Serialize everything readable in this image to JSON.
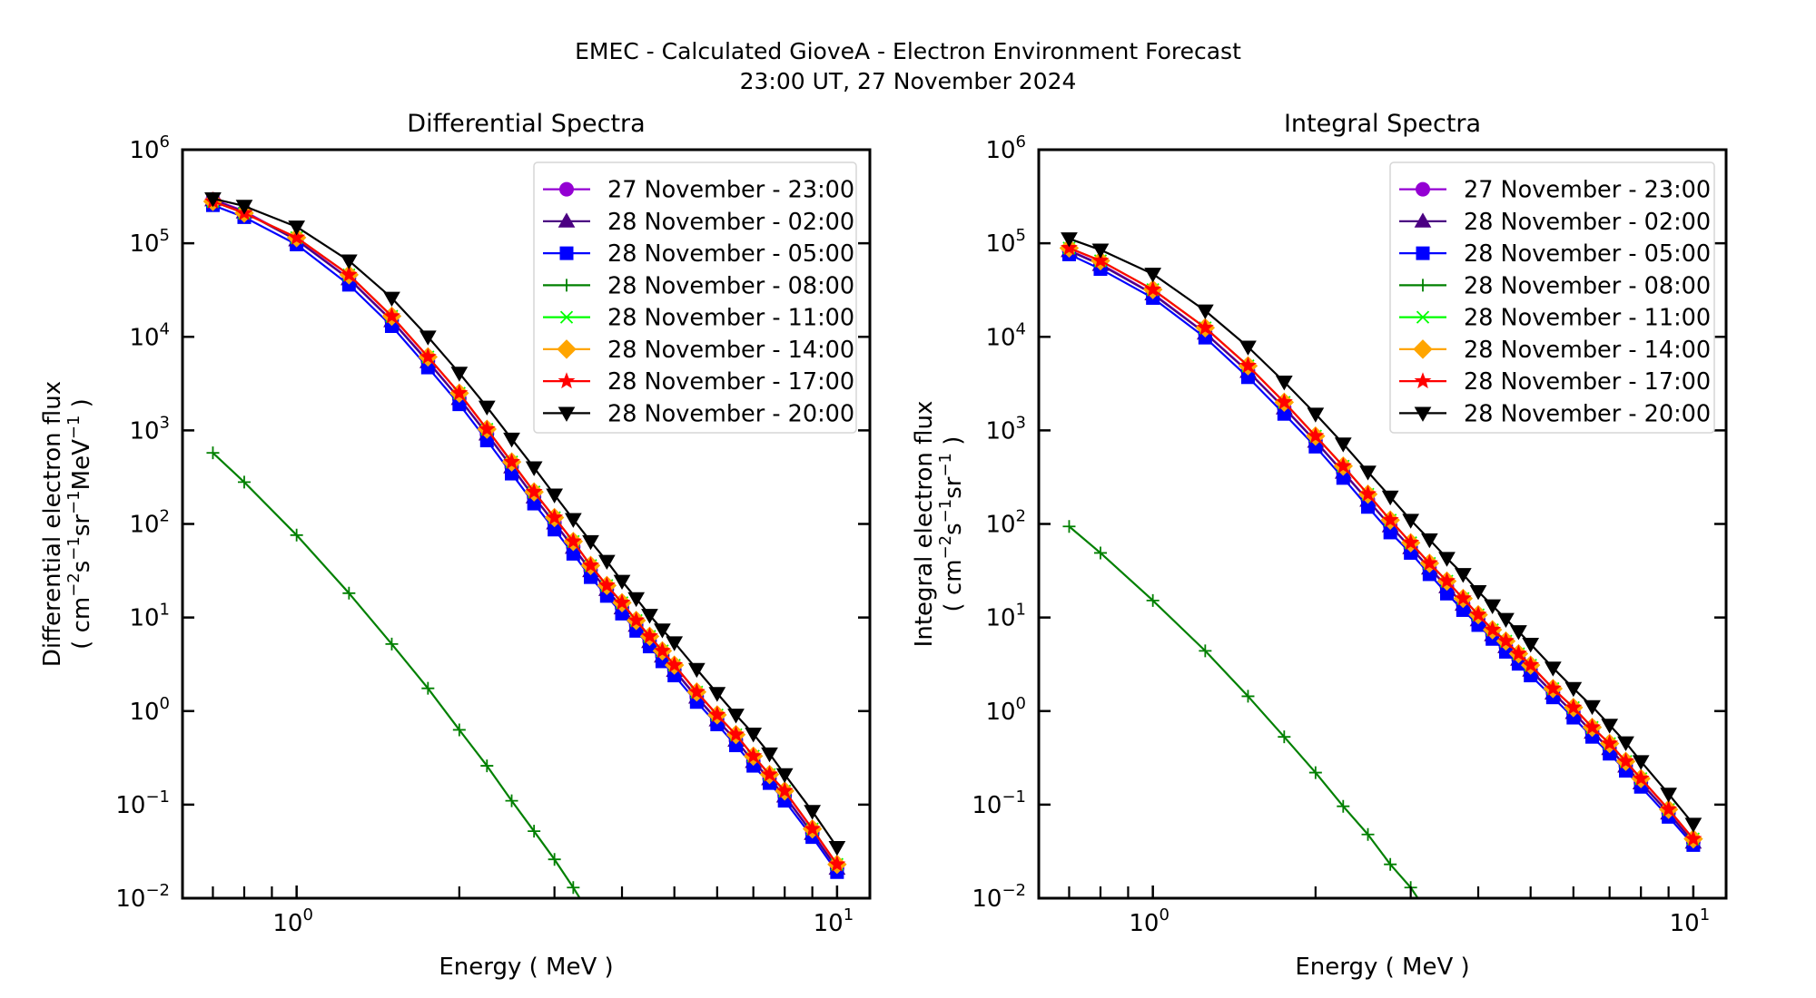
{
  "chart_data": {
    "suptitle": [
      "EMEC - Calculated GioveA - Electron Environment Forecast",
      "23:00 UT, 27 November 2024"
    ],
    "panels": [
      {
        "id": "differential",
        "type": "line",
        "title": "Differential Spectra",
        "xlabel": "Energy ( MeV )",
        "ylabel_line1": "Differential electron flux",
        "ylabel_line2_parts": [
          [
            "( cm",
            ""
          ],
          [
            "−2",
            "sup"
          ],
          [
            "s",
            ""
          ],
          [
            "−1",
            "sup"
          ],
          [
            "sr",
            ""
          ],
          [
            "−1",
            "sup"
          ],
          [
            "MeV",
            ""
          ],
          [
            "−1",
            "sup"
          ],
          [
            " )",
            ""
          ]
        ],
        "xscale": "log",
        "yscale": "log",
        "xlim": [
          0.615,
          11.5
        ],
        "ylim": [
          0.01,
          1000000
        ],
        "xticks": [
          {
            "value": 1,
            "base": "10",
            "exp": "0"
          },
          {
            "value": 10,
            "base": "10",
            "exp": "1"
          }
        ],
        "xminor": [
          0.7,
          0.8,
          0.9,
          2,
          3,
          4,
          5,
          6,
          7,
          8,
          9
        ],
        "yticks": [
          {
            "value": 1000000.0,
            "exp": "6"
          },
          {
            "value": 100000.0,
            "exp": "5"
          },
          {
            "value": 10000.0,
            "exp": "4"
          },
          {
            "value": 1000.0,
            "exp": "3"
          },
          {
            "value": 100.0,
            "exp": "2"
          },
          {
            "value": 10.0,
            "exp": "1"
          },
          {
            "value": 1.0,
            "exp": "0"
          },
          {
            "value": 0.1,
            "exp": "−1"
          },
          {
            "value": 0.01,
            "exp": "−2"
          }
        ],
        "legend_position": "top-right",
        "series": [
          {
            "name": "27 November - 23:00",
            "color": "#9400d3",
            "marker": "circle",
            "values": [
              295000,
              220000,
              110000,
              42000,
              15000,
              5500,
              2200,
              920,
              410,
              195,
              103,
              57,
              32,
              20,
              12.8,
              8.3,
              5.6,
              3.9,
              2.75,
              1.42,
              0.81,
              0.49,
              0.29,
              0.19,
              0.125,
              0.05,
              0.021
            ]
          },
          {
            "name": "28 November - 02:00",
            "color": "#4b0082",
            "marker": "triangle-up",
            "values": [
              290000,
              215000,
              108000,
              41500,
              14800,
              5400,
              2180,
              910,
              405,
              193,
              102,
              56,
              31.5,
              19.8,
              12.6,
              8.2,
              5.5,
              3.85,
              2.7,
              1.4,
              0.8,
              0.485,
              0.287,
              0.188,
              0.123,
              0.049,
              0.0208
            ]
          },
          {
            "name": "28 November - 05:00",
            "color": "#0000ff",
            "marker": "square",
            "values": [
              255000,
              190000,
              97000,
              36000,
              13000,
              4700,
              1900,
              780,
              345,
              165,
              87,
              48,
              27,
              17,
              11,
              7.2,
              4.9,
              3.4,
              2.4,
              1.25,
              0.72,
              0.43,
              0.26,
              0.17,
              0.11,
              0.045,
              0.019
            ]
          },
          {
            "name": "28 November - 08:00",
            "color": "#008000",
            "marker": "plus",
            "values": [
              575,
              280,
              76,
              18.2,
              5.2,
              1.75,
              0.63,
              0.26,
              0.11,
              0.052,
              0.026,
              0.013,
              0.0065,
              null,
              null,
              null,
              null,
              null,
              null,
              null,
              null,
              null,
              null,
              null,
              null,
              null,
              null
            ]
          },
          {
            "name": "28 November - 11:00",
            "color": "#00ff00",
            "marker": "x",
            "values": [
              280000,
              210000,
              115000,
              46000,
              16600,
              6100,
              2500,
              1030,
              460,
              220,
              117,
              65,
              36,
              22,
              14.4,
              9.3,
              6.3,
              4.4,
              3.1,
              1.6,
              0.91,
              0.56,
              0.33,
              0.21,
              0.14,
              0.055,
              0.023
            ]
          },
          {
            "name": "28 November - 14:00",
            "color": "#ffa500",
            "marker": "diamond",
            "values": [
              280000,
              210000,
              115000,
              46000,
              16600,
              6100,
              2500,
              1030,
              460,
              220,
              117,
              65,
              36,
              22,
              14.4,
              9.3,
              6.3,
              4.4,
              3.1,
              1.6,
              0.91,
              0.56,
              0.33,
              0.21,
              0.14,
              0.055,
              0.023
            ]
          },
          {
            "name": "28 November - 17:00",
            "color": "#ff0000",
            "marker": "star",
            "values": [
              280000,
              210000,
              115000,
              46000,
              16600,
              6100,
              2500,
              1030,
              460,
              220,
              117,
              65,
              36,
              22,
              14.4,
              9.3,
              6.3,
              4.4,
              3.1,
              1.6,
              0.91,
              0.56,
              0.33,
              0.21,
              0.14,
              0.055,
              0.023
            ]
          },
          {
            "name": "28 November - 20:00",
            "color": "#000000",
            "marker": "triangle-down",
            "values": [
              300000,
              250000,
              150000,
              65000,
              26000,
              10000,
              4100,
              1780,
              810,
              400,
              205,
              112,
              65,
              40,
              24.5,
              16,
              10.6,
              7.4,
              5.4,
              2.8,
              1.55,
              0.91,
              0.57,
              0.35,
              0.21,
              0.085,
              0.035
            ]
          }
        ]
      },
      {
        "id": "integral",
        "type": "line",
        "title": "Integral Spectra",
        "xlabel": "Energy ( MeV )",
        "ylabel_line1": "Integral electron flux",
        "ylabel_line2_parts": [
          [
            "( cm",
            ""
          ],
          [
            "−2",
            "sup"
          ],
          [
            "s",
            ""
          ],
          [
            "−1",
            "sup"
          ],
          [
            "sr",
            ""
          ],
          [
            "−1",
            "sup"
          ],
          [
            " )",
            ""
          ]
        ],
        "xscale": "log",
        "yscale": "log",
        "xlim": [
          0.615,
          11.5
        ],
        "ylim": [
          0.01,
          1000000
        ],
        "xticks": [
          {
            "value": 1,
            "base": "10",
            "exp": "0"
          },
          {
            "value": 10,
            "base": "10",
            "exp": "1"
          }
        ],
        "xminor": [
          0.7,
          0.8,
          0.9,
          2,
          3,
          4,
          5,
          6,
          7,
          8,
          9
        ],
        "yticks": [
          {
            "value": 1000000.0,
            "exp": "6"
          },
          {
            "value": 100000.0,
            "exp": "5"
          },
          {
            "value": 10000.0,
            "exp": "4"
          },
          {
            "value": 1000.0,
            "exp": "3"
          },
          {
            "value": 100.0,
            "exp": "2"
          },
          {
            "value": 10.0,
            "exp": "1"
          },
          {
            "value": 1.0,
            "exp": "0"
          },
          {
            "value": 0.1,
            "exp": "−1"
          },
          {
            "value": 0.01,
            "exp": "−2"
          }
        ],
        "legend_position": "top-right",
        "series": [
          {
            "name": "27 November - 23:00",
            "color": "#9400d3",
            "marker": "circle",
            "values": [
              84000,
              60000,
              29000,
              11000,
              4300,
              1750,
              770,
              360,
              180,
              96,
              56,
              34,
              21.5,
              14,
              9.5,
              6.6,
              4.9,
              3.6,
              2.75,
              1.57,
              0.97,
              0.6,
              0.4,
              0.26,
              0.172,
              0.082,
              0.04
            ]
          },
          {
            "name": "28 November - 02:00",
            "color": "#4b0082",
            "marker": "triangle-up",
            "values": [
              83000,
              59000,
              28600,
              10900,
              4250,
              1730,
              760,
              355,
              178,
              95,
              55.5,
              33.6,
              21.2,
              13.8,
              9.4,
              6.5,
              4.85,
              3.56,
              2.72,
              1.55,
              0.96,
              0.59,
              0.395,
              0.257,
              0.17,
              0.081,
              0.0395
            ]
          },
          {
            "name": "28 November - 05:00",
            "color": "#0000ff",
            "marker": "square",
            "values": [
              76000,
              53000,
              26000,
              9800,
              3700,
              1500,
              670,
              310,
              152,
              81,
              49,
              29,
              18,
              12,
              8.3,
              5.9,
              4.3,
              3.2,
              2.4,
              1.4,
              0.85,
              0.53,
              0.35,
              0.23,
              0.155,
              0.074,
              0.037
            ]
          },
          {
            "name": "28 November - 08:00",
            "color": "#008000",
            "marker": "plus",
            "values": [
              94,
              49,
              15.2,
              4.4,
              1.44,
              0.53,
              0.22,
              0.096,
              0.048,
              0.023,
              0.013,
              0.0065,
              null,
              null,
              null,
              null,
              null,
              null,
              null,
              null,
              null,
              null,
              null,
              null,
              null,
              null,
              null
            ]
          },
          {
            "name": "28 November - 11:00",
            "color": "#00ff00",
            "marker": "x",
            "values": [
              89000,
              65000,
              32000,
              12500,
              4900,
              2000,
              870,
              415,
              208,
              110,
              63,
              38,
              24.5,
              16,
              10.7,
              7.4,
              5.6,
              4.1,
              3.1,
              1.74,
              1.09,
              0.67,
              0.45,
              0.29,
              0.19,
              0.089,
              0.043
            ]
          },
          {
            "name": "28 November - 14:00",
            "color": "#ffa500",
            "marker": "diamond",
            "values": [
              89000,
              65000,
              32000,
              12500,
              4900,
              2000,
              870,
              415,
              208,
              110,
              63,
              38,
              24.5,
              16,
              10.7,
              7.4,
              5.6,
              4.1,
              3.1,
              1.74,
              1.09,
              0.67,
              0.45,
              0.29,
              0.19,
              0.089,
              0.043
            ]
          },
          {
            "name": "28 November - 17:00",
            "color": "#ff0000",
            "marker": "star",
            "values": [
              89000,
              65000,
              32000,
              12500,
              4900,
              2000,
              870,
              415,
              208,
              110,
              63,
              38,
              24.5,
              16,
              10.7,
              7.4,
              5.6,
              4.1,
              3.1,
              1.74,
              1.09,
              0.67,
              0.45,
              0.29,
              0.19,
              0.089,
              0.043
            ]
          },
          {
            "name": "28 November - 20:00",
            "color": "#000000",
            "marker": "triangle-down",
            "values": [
              112000,
              85000,
              47000,
              19000,
              7800,
              3300,
              1500,
              720,
              360,
              195,
              110,
              68,
              43,
              29,
              19,
              13.4,
              9.6,
              7.1,
              5.2,
              2.9,
              1.75,
              1.12,
              0.71,
              0.46,
              0.29,
              0.13,
              0.062
            ]
          }
        ]
      }
    ],
    "x": [
      0.7,
      0.8,
      1.0,
      1.25,
      1.5,
      1.75,
      2.0,
      2.25,
      2.5,
      2.75,
      3.0,
      3.25,
      3.5,
      3.75,
      4.0,
      4.25,
      4.5,
      4.75,
      5.0,
      5.5,
      6.0,
      6.5,
      7.0,
      7.5,
      8.0,
      9.0,
      10.0
    ]
  }
}
